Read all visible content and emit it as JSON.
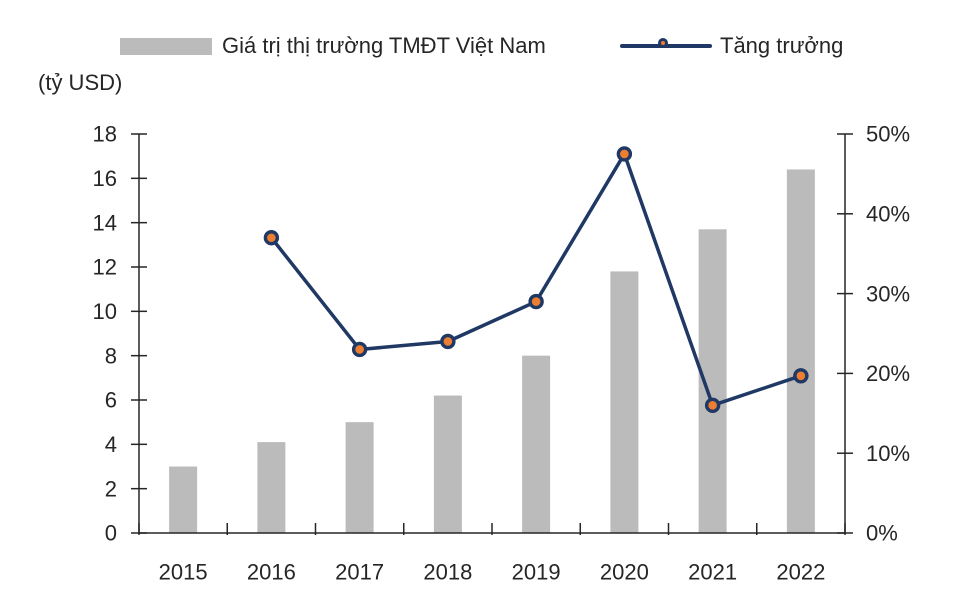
{
  "page": {
    "background": "#FFFFFF"
  },
  "legend": {
    "bar_label": "Giá trị thị trường TMĐT Việt Nam",
    "line_label": "Tăng trưởng"
  },
  "y_axis_title": "(tỷ USD)",
  "chart_data": {
    "type": "combo-bar-line",
    "title": "",
    "categories": [
      "2015",
      "2016",
      "2017",
      "2018",
      "2019",
      "2020",
      "2021",
      "2022"
    ],
    "series": [
      {
        "name": "Giá trị thị trường TMĐT Việt Nam",
        "type": "bar",
        "axis": "left",
        "unit": "tỷ USD",
        "color": "#BBBBBB",
        "values": [
          3.0,
          4.1,
          5.0,
          6.2,
          8.0,
          11.8,
          13.7,
          16.4
        ]
      },
      {
        "name": "Tăng trưởng",
        "type": "line",
        "axis": "right",
        "unit": "%",
        "color": "#1F3864",
        "marker_color": "#ED7D31",
        "values": [
          null,
          37,
          23,
          24,
          29,
          47.5,
          16,
          19.7
        ]
      }
    ],
    "left_axis": {
      "title": "(tỷ USD)",
      "min": 0,
      "max": 18,
      "step": 2,
      "tick_labels": [
        "0",
        "2",
        "4",
        "6",
        "8",
        "10",
        "12",
        "14",
        "16",
        "18"
      ]
    },
    "right_axis": {
      "min": 0,
      "max": 50,
      "step": 10,
      "tick_labels": [
        "0%",
        "10%",
        "20%",
        "30%",
        "40%",
        "50%"
      ]
    },
    "axis_color": "#262626",
    "text_color": "#262626",
    "grid": false,
    "legend_position": "top"
  }
}
